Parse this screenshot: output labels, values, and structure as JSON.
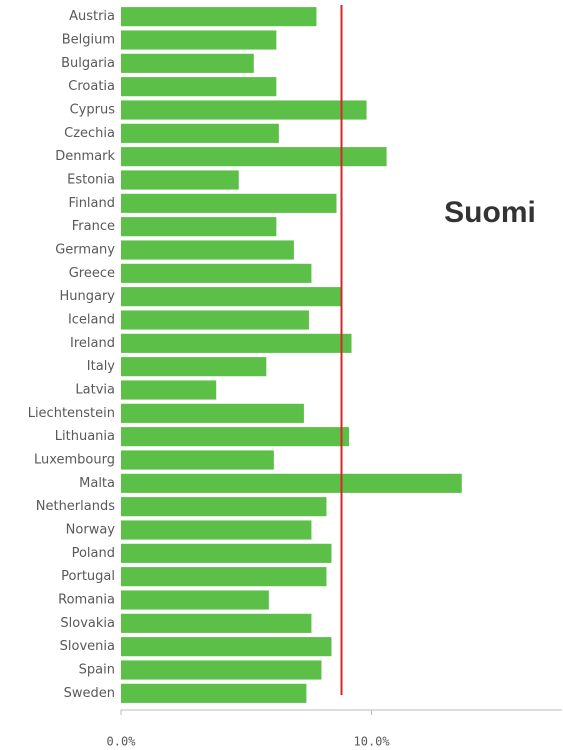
{
  "chart_data": {
    "type": "bar",
    "orientation": "horizontal",
    "categories": [
      "Austria",
      "Belgium",
      "Bulgaria",
      "Croatia",
      "Cyprus",
      "Czechia",
      "Denmark",
      "Estonia",
      "Finland",
      "France",
      "Germany",
      "Greece",
      "Hungary",
      "Iceland",
      "Ireland",
      "Italy",
      "Latvia",
      "Liechtenstein",
      "Lithuania",
      "Luxembourg",
      "Malta",
      "Netherlands",
      "Norway",
      "Poland",
      "Portugal",
      "Romania",
      "Slovakia",
      "Slovenia",
      "Spain",
      "Sweden"
    ],
    "values": [
      7.8,
      6.2,
      5.3,
      6.2,
      9.8,
      6.3,
      10.6,
      4.7,
      8.6,
      6.2,
      6.9,
      7.6,
      8.8,
      7.5,
      9.2,
      5.8,
      3.8,
      7.3,
      9.1,
      6.1,
      13.6,
      8.2,
      7.6,
      8.4,
      8.2,
      5.9,
      7.6,
      8.4,
      8.0,
      7.4
    ],
    "color": "#5cbf47",
    "xlim": [
      0,
      17.6
    ],
    "xticks": [
      {
        "value": 0,
        "label": "0.0%"
      },
      {
        "value": 10,
        "label": "10.0%"
      }
    ],
    "reference_line": {
      "value": 8.8,
      "color": "#d62728"
    },
    "annotation": "Suomi"
  }
}
